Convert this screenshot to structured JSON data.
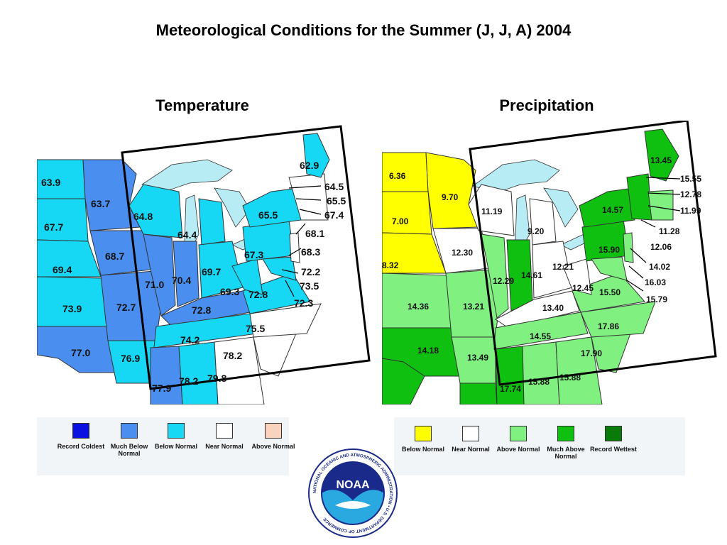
{
  "title": "Meteorological Conditions for the Summer (J, J, A) 2004",
  "temperature_map": {
    "title": "Temperature",
    "values": [
      "63.9",
      "63.7",
      "67.7",
      "64.8",
      "64.4",
      "62.9",
      "64.5",
      "65.5",
      "67.4",
      "65.5",
      "68.1",
      "68.3",
      "72.2",
      "73.5",
      "72.3",
      "69.4",
      "68.7",
      "73.9",
      "72.7",
      "71.0",
      "70.4",
      "69.7",
      "67.3",
      "69.3",
      "72.8",
      "72.8",
      "77.0",
      "76.9",
      "74.2",
      "75.5",
      "78.2",
      "77.9",
      "78.2",
      "79.8"
    ],
    "legend": [
      {
        "label": "Record Coldest",
        "color": "#0a10e0"
      },
      {
        "label": "Much Below Normal",
        "color": "#4a8ff0"
      },
      {
        "label": "Below Normal",
        "color": "#16d8f5"
      },
      {
        "label": "Near Normal",
        "color": "#ffffff"
      },
      {
        "label": "Above Normal",
        "color": "#f9d3bd"
      }
    ]
  },
  "precipitation_map": {
    "title": "Precipitation",
    "values": [
      "6.36",
      "9.70",
      "7.00",
      "11.19",
      "9.20",
      "13.45",
      "15.55",
      "12.78",
      "11.99",
      "14.57",
      "11.28",
      "8.32",
      "12.30",
      "15.90",
      "12.06",
      "12.29",
      "14.61",
      "12.21",
      "14.02",
      "16.03",
      "12.45",
      "15.50",
      "15.79",
      "14.36",
      "13.21",
      "13.40",
      "14.18",
      "13.49",
      "14.55",
      "17.86",
      "17.90",
      "17.74",
      "15.88",
      "15.88"
    ],
    "legend": [
      {
        "label": "Below Normal",
        "color": "#ffff00"
      },
      {
        "label": "Near Normal",
        "color": "#ffffff"
      },
      {
        "label": "Above Normal",
        "color": "#80f080"
      },
      {
        "label": "Much Above Normal",
        "color": "#10c010"
      },
      {
        "label": "Record Wettest",
        "color": "#0a7a0a"
      }
    ]
  },
  "logo": {
    "text": "NOAA",
    "ring_text": "NATIONAL OCEANIC AND ATMOSPHERIC ADMINISTRATION • U.S. DEPARTMENT OF COMMERCE",
    "colors": {
      "dark": "#1a2a8a",
      "light": "#2aa8e0"
    }
  }
}
